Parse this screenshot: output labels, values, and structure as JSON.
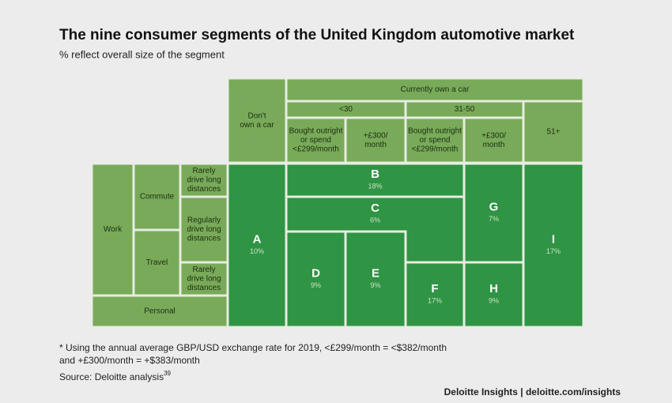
{
  "header": {
    "title": "The nine consumer segments of the United Kingdom automotive market",
    "subtitle": "% reflect overall size of the segment"
  },
  "columns": {
    "no_car": [
      "Don't",
      "own a car"
    ],
    "own_car": "Currently own a car",
    "age_groups": [
      "<30",
      "31-50",
      "51+"
    ],
    "spend": [
      [
        "Bought outright",
        "or spend",
        "<£299/month"
      ],
      [
        "+£300/",
        "month"
      ],
      [
        "Bought outright",
        "or spend",
        "<£299/month"
      ],
      [
        "+£300/",
        "month"
      ]
    ]
  },
  "rows": {
    "purpose": [
      "Work",
      "Personal"
    ],
    "work_type": [
      "Commute",
      "Travel"
    ],
    "distance": [
      [
        "Rarely",
        "drive long",
        "distances"
      ],
      [
        "Regularly",
        "drive long",
        "distances"
      ],
      [
        "Rarely",
        "drive long",
        "distances"
      ]
    ]
  },
  "segments": [
    {
      "label": "A",
      "share": "10%"
    },
    {
      "label": "B",
      "share": "18%"
    },
    {
      "label": "C",
      "share": "6%"
    },
    {
      "label": "D",
      "share": "9%"
    },
    {
      "label": "E",
      "share": "9%"
    },
    {
      "label": "F",
      "share": "17%"
    },
    {
      "label": "G",
      "share": "7%"
    },
    {
      "label": "H",
      "share": "9%"
    },
    {
      "label": "I",
      "share": "17%"
    }
  ],
  "notes": {
    "footnote": [
      "* Using the annual average GBP/USD exchange rate for 2019, <£299/month = <$382/month",
      "and +£300/month = +$383/month"
    ],
    "source": "Source: Deloitte analysis",
    "source_ref": "39"
  },
  "footer": "Deloitte Insights | deloitte.com/insights"
}
